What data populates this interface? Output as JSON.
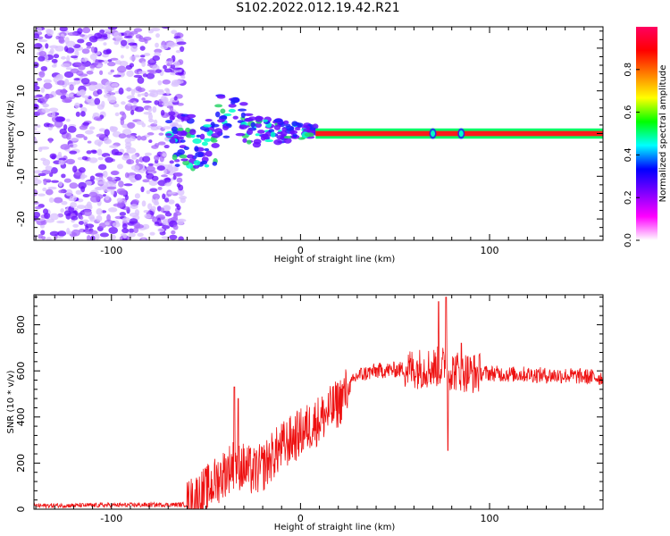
{
  "title": "S102.2022.012.19.42.R21",
  "colorbar": {
    "label": "Normalized spectral amplitude",
    "ticks": [
      "0.0",
      "0.2",
      "0.4",
      "0.6",
      "0.8"
    ],
    "range": [
      0,
      1
    ],
    "colormap": [
      "#ffffff",
      "#ff00ff",
      "#8000ff",
      "#0000ff",
      "#00ffff",
      "#00ff00",
      "#ffff00",
      "#ff8000",
      "#ff0000",
      "#ff0060"
    ]
  },
  "chart_data": [
    {
      "type": "heatmap",
      "title": "",
      "xlabel": "Height of straight line (km)",
      "ylabel": "Frequency (Hz)",
      "xlim": [
        -141,
        160
      ],
      "ylim": [
        -25,
        25
      ],
      "xticks": [
        "-100",
        "0",
        "100"
      ],
      "yticks": [
        "-20",
        "-10",
        "0",
        "10",
        "20"
      ],
      "regions": [
        {
          "name": "noise",
          "x_range": [
            -141,
            -62
          ],
          "freq_range": [
            -25,
            25
          ],
          "amplitude": [
            0.0,
            0.12
          ]
        },
        {
          "name": "transition",
          "x_range": [
            -70,
            8
          ],
          "freq_range": [
            -6,
            8
          ],
          "amplitude": [
            0.05,
            0.5
          ]
        },
        {
          "name": "carrier",
          "x_range": [
            8,
            160
          ],
          "freq_range": [
            -0.6,
            0.6
          ],
          "amplitude": [
            0.9,
            1.0
          ]
        }
      ],
      "carrier_frequency_hz": 0
    },
    {
      "type": "line",
      "title": "",
      "xlabel": "Height of straight line (km)",
      "ylabel": "SNR (10 * v/v)",
      "xlim": [
        -141,
        160
      ],
      "ylim": [
        0,
        930
      ],
      "xticks": [
        "-100",
        "0",
        "100"
      ],
      "yticks": [
        "0",
        "200",
        "400",
        "600",
        "800"
      ],
      "series_color": "#ee1111",
      "envelope_x": [
        -141,
        -60,
        -55,
        -50,
        -45,
        -40,
        -35,
        -30,
        -25,
        -20,
        -15,
        -10,
        -5,
        0,
        5,
        10,
        15,
        20,
        25,
        30,
        40,
        50,
        60,
        70,
        75,
        78,
        80,
        85,
        90,
        100,
        110,
        120,
        130,
        140,
        150,
        160
      ],
      "envelope_y": [
        15,
        20,
        50,
        80,
        120,
        160,
        200,
        180,
        160,
        180,
        230,
        270,
        300,
        330,
        360,
        390,
        420,
        460,
        520,
        580,
        600,
        605,
        610,
        615,
        620,
        610,
        600,
        600,
        590,
        590,
        585,
        585,
        580,
        580,
        575,
        570
      ],
      "spikes": [
        {
          "x": -35,
          "y": 530
        },
        {
          "x": -33,
          "y": 480
        },
        {
          "x": 73,
          "y": 900
        },
        {
          "x": 77,
          "y": 920
        },
        {
          "x": 78,
          "y": 255
        },
        {
          "x": 85,
          "y": 720
        }
      ]
    }
  ]
}
